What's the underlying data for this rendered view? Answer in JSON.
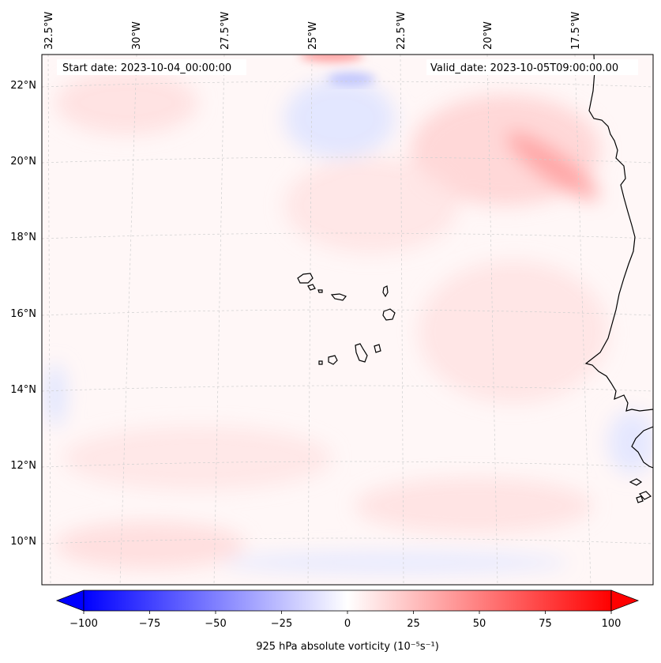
{
  "header": {
    "start_date": "Start date: 2023-10-04_00:00:00",
    "valid_date": "Valid_date: 2023-10-05T09:00:00.00"
  },
  "map": {
    "lon_labels": [
      "32.5°W",
      "30°W",
      "27.5°W",
      "25°W",
      "22.5°W",
      "20°W",
      "17.5°W"
    ],
    "lat_labels": [
      "22°N",
      "20°N",
      "18°N",
      "16°N",
      "14°N",
      "12°N",
      "10°N"
    ],
    "gridlines": "dashed",
    "field": "925 hPa absolute vorticity",
    "coastline_color": "#000000"
  },
  "colorbar": {
    "label": "925 hPa absolute vorticity (10⁻⁵s⁻¹)",
    "ticks": [
      "−100",
      "−75",
      "−50",
      "−25",
      "0",
      "25",
      "50",
      "75",
      "100"
    ],
    "range": [
      -100,
      100
    ],
    "colormap": "bwr",
    "low_color": "#0000ff",
    "mid_color": "#ffffff",
    "high_color": "#ff0000",
    "extend": "both"
  }
}
